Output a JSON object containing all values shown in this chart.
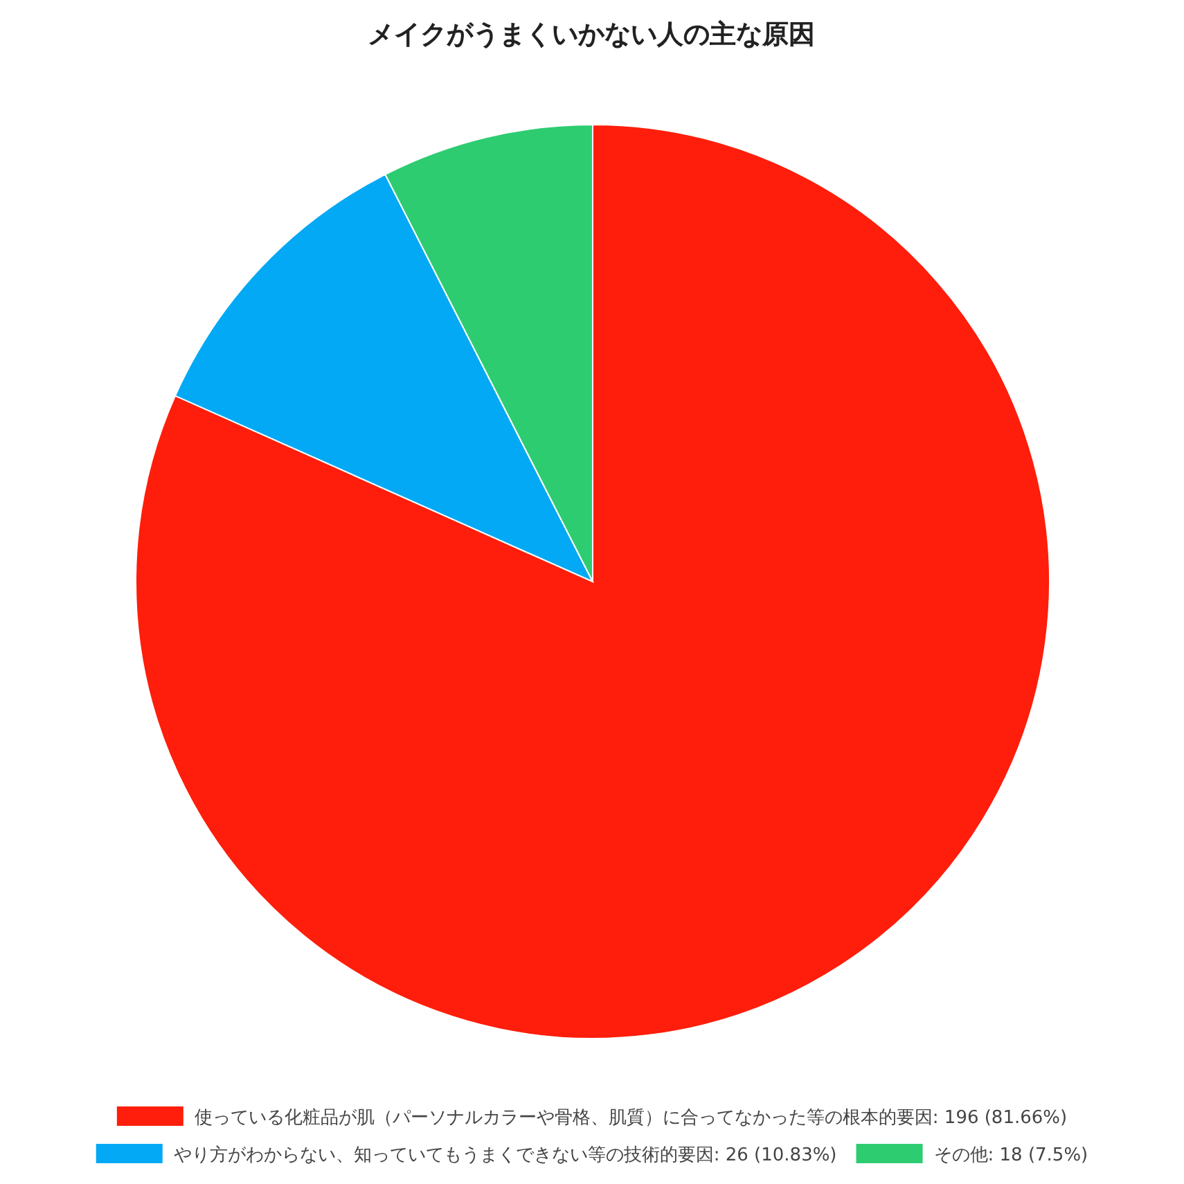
{
  "chart_data": {
    "type": "pie",
    "title": "メイクがうまくいかない人の主な原因",
    "categories": [
      "使っている化粧品が肌（パーソナルカラーや骨格、肌質）に合ってなかった等の根本的要因",
      "やり方がわからない、知っていてもうまくできない等の技術的要因",
      "その他"
    ],
    "values": [
      196,
      26,
      18
    ],
    "colors": [
      "#fe1e0b",
      "#03a9f4",
      "#2ecc71"
    ],
    "value_labels": [
      ": 196 (81.66%)",
      ": 26 (10.83%)",
      ": 18 (7.5%)"
    ],
    "legend": "bottom"
  }
}
